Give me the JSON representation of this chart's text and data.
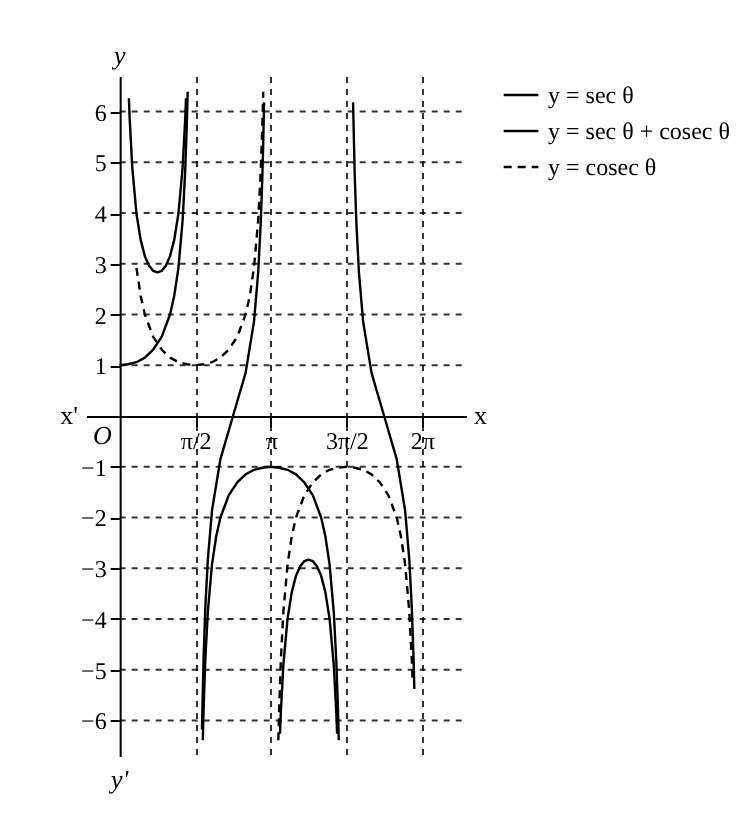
{
  "chart_data": {
    "type": "line",
    "xlabel": "x",
    "ylabel": "y",
    "annotations": [
      "O",
      "x'",
      "y'"
    ],
    "xlim": [
      -0.7,
      7.2
    ],
    "ylim": [
      -6.7,
      6.7
    ],
    "xticks": [
      {
        "value": 1.5708,
        "label": "π/2"
      },
      {
        "value": 3.1416,
        "label": "π"
      },
      {
        "value": 4.7124,
        "label": "3π/2"
      },
      {
        "value": 6.2832,
        "label": "2π"
      }
    ],
    "yticks": [
      -6,
      -5,
      -4,
      -3,
      -2,
      -1,
      1,
      2,
      3,
      4,
      5,
      6
    ],
    "grid": true,
    "legend": "right",
    "series": [
      {
        "name": "y = sec θ",
        "color": "#000000",
        "line_style": "solid",
        "x": [
          0,
          0.1745,
          0.3491,
          0.5236,
          0.6981,
          0.8727,
          1.0472,
          1.1345,
          1.2217,
          1.309,
          1.3614,
          1.3963,
          1.4137,
          1.5708,
          1.7279,
          1.7453,
          1.7802,
          1.8326,
          1.9199,
          2.0071,
          2.0944,
          2.2689,
          2.4435,
          2.618,
          2.7925,
          2.9671,
          3.1416,
          3.3161,
          3.4907,
          3.6652,
          3.8397,
          4.0143,
          4.1888,
          4.2761,
          4.3633,
          4.4506,
          4.503,
          4.5379,
          4.5553
        ],
        "values": [
          1,
          1.02,
          1.06,
          1.15,
          1.31,
          1.56,
          2,
          2.37,
          2.92,
          3.86,
          4.81,
          5.76,
          6.39,
          null,
          -6.39,
          -5.76,
          -4.81,
          -3.86,
          -2.92,
          -2.37,
          -2,
          -1.56,
          -1.31,
          -1.15,
          -1.06,
          -1.02,
          -1,
          -1.02,
          -1.06,
          -1.15,
          -1.31,
          -1.56,
          -2,
          -2.37,
          -2.92,
          -3.86,
          -4.81,
          -5.76,
          -6.39
        ]
      },
      {
        "name": "y = sec θ + cosec θ",
        "color": "#000000",
        "line_style": "solid",
        "x": [
          0.192,
          0.2094,
          0.2618,
          0.3491,
          0.4363,
          0.5236,
          0.6109,
          0.6981,
          0.7854,
          0.8727,
          0.9599,
          1.0472,
          1.1345,
          1.2217,
          1.309,
          1.3614,
          1.3788,
          1.5708,
          1.7104,
          1.7453,
          1.7802,
          1.8326,
          1.9199,
          2.0944,
          2.3562,
          2.618,
          2.7925,
          2.8798,
          2.9322,
          2.9671,
          2.9845,
          3.002,
          3.1416,
          3.3336,
          3.351,
          3.4034,
          3.4907,
          3.5779,
          3.6652,
          3.7525,
          3.8397,
          3.927,
          4.0143,
          4.1015,
          4.1888,
          4.2761,
          4.3633,
          4.4506,
          4.503,
          4.5204,
          4.7124,
          4.852,
          4.8869,
          4.9218,
          4.9742,
          5.0615,
          5.236,
          5.4978,
          5.7596,
          5.9341,
          6.0214,
          6.0737,
          6.1087,
          6.1261
        ],
        "values": [
          6.26,
          5.83,
          4.9,
          3.99,
          3.47,
          3.15,
          2.96,
          2.86,
          2.83,
          2.86,
          2.96,
          3.15,
          3.47,
          3.99,
          4.9,
          5.83,
          6.26,
          null,
          -6.18,
          -4.74,
          -3.79,
          -2.83,
          -1.86,
          -0.85,
          0,
          0.85,
          1.86,
          2.83,
          3.79,
          4.74,
          5.38,
          6.18,
          null,
          -6.26,
          -5.83,
          -4.9,
          -3.99,
          -3.47,
          -3.15,
          -2.96,
          -2.86,
          -2.83,
          -2.86,
          -2.96,
          -3.15,
          -3.47,
          -3.99,
          -4.9,
          -5.83,
          -6.26,
          null,
          6.18,
          4.74,
          3.79,
          2.83,
          1.86,
          0.85,
          0,
          -0.85,
          -1.86,
          -2.83,
          -3.79,
          -4.74,
          -5.38
        ]
      },
      {
        "name": "y = cosec θ",
        "color": "#000000",
        "line_style": "dashed",
        "x": [
          0.3491,
          0.4363,
          0.5236,
          0.6981,
          0.8727,
          1.0472,
          1.2217,
          1.3963,
          1.5708,
          1.7453,
          1.9199,
          2.0944,
          2.2689,
          2.4435,
          2.618,
          2.7053,
          2.7925,
          2.8798,
          2.9322,
          2.9671,
          2.9845,
          3.1416,
          3.2987,
          3.3161,
          3.351,
          3.4034,
          3.4907,
          3.5779,
          3.6652,
          3.8397,
          4.0143,
          4.1888,
          4.3633,
          4.5379,
          4.7124,
          4.8869,
          5.0615,
          5.236,
          5.4105,
          5.5851,
          5.7596,
          5.8469,
          5.9341,
          6.0214,
          6.0737,
          6.0912
        ],
        "values": [
          2.92,
          2.37,
          2,
          1.56,
          1.31,
          1.15,
          1.06,
          1.02,
          1,
          1.02,
          1.06,
          1.15,
          1.31,
          1.56,
          2,
          2.37,
          2.92,
          3.86,
          4.81,
          5.76,
          6.39,
          null,
          -6.39,
          -5.76,
          -4.81,
          -3.86,
          -2.92,
          -2.37,
          -2,
          -1.56,
          -1.31,
          -1.15,
          -1.06,
          -1.02,
          -1,
          -1.02,
          -1.06,
          -1.15,
          -1.31,
          -1.56,
          -2,
          -2.37,
          -2.92,
          -3.86,
          -4.81,
          -5.24
        ]
      }
    ]
  }
}
